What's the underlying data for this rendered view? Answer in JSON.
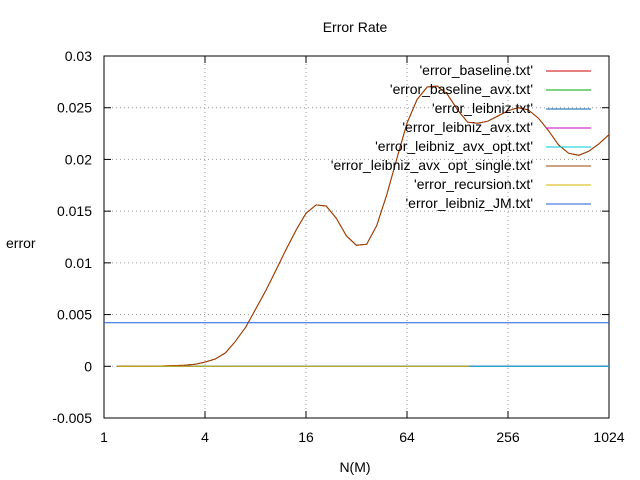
{
  "chart_data": {
    "type": "line",
    "title": "Error Rate",
    "xlabel": "N(M)",
    "ylabel": "error",
    "x_scale": "log2",
    "xlim": [
      1,
      1024
    ],
    "ylim": [
      -0.005,
      0.03
    ],
    "x_ticks": [
      "1",
      "4",
      "16",
      "64",
      "256",
      "1024"
    ],
    "y_ticks": [
      "-0.005",
      "0",
      "0.005",
      "0.01",
      "0.015",
      "0.02",
      "0.025",
      "0.03"
    ],
    "grid": true,
    "legend_position": "top-right",
    "series": [
      {
        "name": "'error_baseline.txt'",
        "color": "#cc0000",
        "x": [
          1.2,
          2,
          3,
          3.5,
          4,
          4.6,
          5.3,
          6,
          7,
          8,
          9.2,
          10.6,
          12.1,
          14,
          16,
          18.4,
          21.1,
          24.3,
          27.9,
          32,
          36.8,
          42.2,
          48.5,
          55.7,
          64,
          73.5,
          84.4,
          97,
          111.4,
          128,
          147,
          168.9,
          194,
          222.9,
          256,
          294.1,
          337.8,
          388,
          445.7,
          512,
          588.1,
          675.6,
          776.1,
          891.4,
          1024
        ],
        "y": [
          0.0,
          0.0,
          0.0001,
          0.0002,
          0.0004,
          0.0007,
          0.0013,
          0.0023,
          0.0038,
          0.0055,
          0.0073,
          0.0093,
          0.0112,
          0.0132,
          0.0148,
          0.0156,
          0.0155,
          0.0143,
          0.0126,
          0.0117,
          0.0118,
          0.0136,
          0.0166,
          0.0201,
          0.0235,
          0.0258,
          0.027,
          0.0271,
          0.0263,
          0.0248,
          0.0236,
          0.0235,
          0.0237,
          0.0242,
          0.0247,
          0.025,
          0.0248,
          0.024,
          0.0228,
          0.0214,
          0.0206,
          0.0204,
          0.0208,
          0.0215,
          0.0224
        ]
      },
      {
        "name": "'error_baseline_avx.txt'",
        "color": "#00aa00",
        "x": [
          1.2,
          4,
          16,
          64,
          256,
          1024
        ],
        "y": [
          0,
          0,
          0,
          0,
          0,
          0
        ]
      },
      {
        "name": "'error_leibniz.txt'",
        "color": "#0060ad",
        "x": [
          1.2,
          4,
          16,
          64,
          256,
          1024
        ],
        "y": [
          0,
          0,
          0,
          0,
          0,
          0
        ]
      },
      {
        "name": "'error_leibniz_avx.txt'",
        "color": "#c000c0",
        "x": [
          1.2,
          4,
          16,
          64,
          256,
          1024
        ],
        "y": [
          0,
          0,
          0,
          0,
          0,
          0
        ]
      },
      {
        "name": "'error_leibniz_avx_opt.txt'",
        "color": "#00c8d8",
        "x": [
          1.2,
          4,
          16,
          64,
          256,
          1024
        ],
        "y": [
          0,
          0,
          0,
          0,
          0,
          0
        ]
      },
      {
        "name": "'error_leibniz_avx_opt_single.txt'",
        "color": "#994400",
        "x": [
          1.2,
          2,
          3,
          3.5,
          4,
          4.6,
          5.3,
          6,
          7,
          8,
          9.2,
          10.6,
          12.1,
          14,
          16,
          18.4,
          21.1,
          24.3,
          27.9,
          32,
          36.8,
          42.2,
          48.5,
          55.7,
          64,
          73.5,
          84.4,
          97,
          111.4,
          128,
          147,
          168.9,
          194,
          222.9,
          256,
          294.1,
          337.8,
          388,
          445.7,
          512,
          588.1,
          675.6,
          776.1,
          891.4,
          1024
        ],
        "y": [
          0.0,
          0.0,
          0.0001,
          0.0002,
          0.0004,
          0.0007,
          0.0013,
          0.0023,
          0.0038,
          0.0055,
          0.0073,
          0.0093,
          0.0112,
          0.0132,
          0.0148,
          0.0156,
          0.0155,
          0.0143,
          0.0126,
          0.0117,
          0.0118,
          0.0136,
          0.0166,
          0.0201,
          0.0235,
          0.0258,
          0.027,
          0.0271,
          0.0263,
          0.0248,
          0.0236,
          0.0235,
          0.0237,
          0.0242,
          0.0247,
          0.025,
          0.0248,
          0.024,
          0.0228,
          0.0214,
          0.0206,
          0.0204,
          0.0208,
          0.0215,
          0.0224
        ]
      },
      {
        "name": "'error_recursion.txt'",
        "color": "#d8b400",
        "x": [
          1.2,
          4,
          16,
          64,
          150
        ],
        "y": [
          0,
          0,
          0,
          0,
          0
        ]
      },
      {
        "name": "'error_leibniz_JM.txt'",
        "color": "#1f5fd8",
        "x": [
          1,
          1024
        ],
        "y": [
          0.0042,
          0.0042
        ]
      }
    ]
  }
}
